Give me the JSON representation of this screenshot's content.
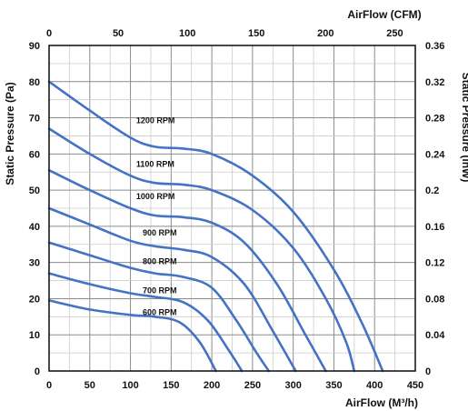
{
  "chart_data": {
    "type": "line",
    "title": "",
    "xlabel": "AirFlow (M³/h)",
    "x2label": "AirFlow (CFM)",
    "ylabel": "Static Pressure (Pa)",
    "y2label": "Static Pressure (inW)",
    "xlim": [
      0,
      450
    ],
    "ylim": [
      0,
      90
    ],
    "x2lim": [
      0,
      250
    ],
    "y2lim": [
      0,
      0.36
    ],
    "xticks": [
      "0",
      "50",
      "100",
      "150",
      "200",
      "250",
      "300",
      "350",
      "400",
      "450"
    ],
    "yticks": [
      "0",
      "10",
      "20",
      "30",
      "40",
      "50",
      "60",
      "70",
      "80",
      "90"
    ],
    "x2ticks": [
      "0",
      "50",
      "100",
      "150",
      "200",
      "250"
    ],
    "y2ticks": [
      "0",
      "0.04",
      "0.08",
      "0.12",
      "0.16",
      "0.2",
      "0.24",
      "0.28",
      "0.32",
      "0.36"
    ],
    "grid": true,
    "line_color": "#4472c4",
    "series": [
      {
        "name": "1200 RPM",
        "points": [
          [
            0,
            80
          ],
          [
            50,
            72
          ],
          [
            100,
            64.5
          ],
          [
            130,
            62
          ],
          [
            165,
            61.5
          ],
          [
            200,
            60
          ],
          [
            250,
            54
          ],
          [
            300,
            44
          ],
          [
            350,
            28
          ],
          [
            385,
            13
          ],
          [
            410,
            0
          ]
        ]
      },
      {
        "name": "1100 RPM",
        "points": [
          [
            0,
            67
          ],
          [
            50,
            60
          ],
          [
            100,
            54
          ],
          [
            130,
            52
          ],
          [
            165,
            51.5
          ],
          [
            200,
            50
          ],
          [
            250,
            44.5
          ],
          [
            300,
            34
          ],
          [
            340,
            20
          ],
          [
            365,
            8
          ],
          [
            375,
            0
          ]
        ]
      },
      {
        "name": "1000 RPM",
        "points": [
          [
            0,
            55.5
          ],
          [
            50,
            50
          ],
          [
            100,
            45
          ],
          [
            130,
            43
          ],
          [
            165,
            42.5
          ],
          [
            200,
            41
          ],
          [
            240,
            35.5
          ],
          [
            280,
            24
          ],
          [
            315,
            10
          ],
          [
            340,
            0
          ]
        ]
      },
      {
        "name": "900 RPM",
        "points": [
          [
            0,
            45
          ],
          [
            50,
            40.5
          ],
          [
            100,
            36
          ],
          [
            130,
            34.5
          ],
          [
            165,
            33.5
          ],
          [
            200,
            31.5
          ],
          [
            240,
            24
          ],
          [
            275,
            11
          ],
          [
            303,
            0
          ]
        ]
      },
      {
        "name": "800 RPM",
        "points": [
          [
            0,
            35.5
          ],
          [
            50,
            32
          ],
          [
            100,
            28.5
          ],
          [
            130,
            27
          ],
          [
            165,
            26
          ],
          [
            200,
            23
          ],
          [
            230,
            14
          ],
          [
            255,
            5
          ],
          [
            270,
            0
          ]
        ]
      },
      {
        "name": "700 RPM",
        "points": [
          [
            0,
            27
          ],
          [
            50,
            24
          ],
          [
            100,
            21.5
          ],
          [
            130,
            20.5
          ],
          [
            165,
            19
          ],
          [
            195,
            14
          ],
          [
            220,
            6
          ],
          [
            237,
            0
          ]
        ]
      },
      {
        "name": "600 RPM",
        "points": [
          [
            0,
            19.5
          ],
          [
            50,
            17
          ],
          [
            100,
            15.5
          ],
          [
            130,
            15
          ],
          [
            160,
            13.5
          ],
          [
            185,
            8
          ],
          [
            205,
            0
          ]
        ]
      }
    ],
    "series_labels": [
      {
        "text": "1200 RPM",
        "x": 107,
        "y": 68.5
      },
      {
        "text": "1100 RPM",
        "x": 107,
        "y": 56.5
      },
      {
        "text": "1000 RPM",
        "x": 107,
        "y": 47.5
      },
      {
        "text": "900 RPM",
        "x": 115,
        "y": 37.5
      },
      {
        "text": "800 RPM",
        "x": 115,
        "y": 29.5
      },
      {
        "text": "700 RPM",
        "x": 115,
        "y": 21.5
      },
      {
        "text": "600 RPM",
        "x": 115,
        "y": 15.5
      }
    ]
  }
}
